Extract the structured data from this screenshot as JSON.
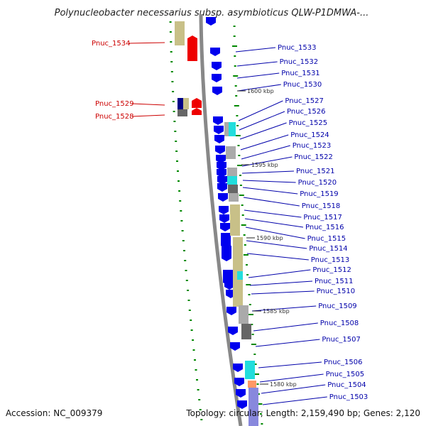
{
  "title": "Polynucleobacter necessarius subsp. asymbioticus QLW-P1DMWA-...",
  "accession": "Accession: NC_009379",
  "topology": "Topology: circular; Length: 2,159,490 bp; Genes: 2,120",
  "colors": {
    "forward_gene": "#0000ee",
    "reverse_gene": "#ee0000",
    "backbone": "#888888",
    "forward_label": "#0000aa",
    "reverse_label": "#cc0000",
    "gc_marker": "#008800",
    "cog_khaki": "#c8c088",
    "cog_cyan": "#22dddd",
    "cog_grey": "#aaaaaa",
    "cog_dark": "#666666"
  },
  "scale_markers": [
    {
      "text": "1600 kbp"
    },
    {
      "text": "1595 kbp"
    },
    {
      "text": "1590 kbp"
    },
    {
      "text": "1585 kbp"
    },
    {
      "text": "1580 kbp"
    }
  ],
  "reverse_genes": [
    {
      "label": "Pnuc_1534"
    },
    {
      "label": "Pnuc_1529"
    },
    {
      "label": "Pnuc_1528"
    }
  ],
  "forward_genes": [
    {
      "label": "Pnuc_1533"
    },
    {
      "label": "Pnuc_1532"
    },
    {
      "label": "Pnuc_1531"
    },
    {
      "label": "Pnuc_1530"
    },
    {
      "label": "Pnuc_1527"
    },
    {
      "label": "Pnuc_1526"
    },
    {
      "label": "Pnuc_1525"
    },
    {
      "label": "Pnuc_1524"
    },
    {
      "label": "Pnuc_1523"
    },
    {
      "label": "Pnuc_1522"
    },
    {
      "label": "Pnuc_1521"
    },
    {
      "label": "Pnuc_1520"
    },
    {
      "label": "Pnuc_1519"
    },
    {
      "label": "Pnuc_1518"
    },
    {
      "label": "Pnuc_1517"
    },
    {
      "label": "Pnuc_1516"
    },
    {
      "label": "Pnuc_1515"
    },
    {
      "label": "Pnuc_1514"
    },
    {
      "label": "Pnuc_1513"
    },
    {
      "label": "Pnuc_1512"
    },
    {
      "label": "Pnuc_1511"
    },
    {
      "label": "Pnuc_1510"
    },
    {
      "label": "Pnuc_1509"
    },
    {
      "label": "Pnuc_1508"
    },
    {
      "label": "Pnuc_1507"
    },
    {
      "label": "Pnuc_1506"
    },
    {
      "label": "Pnuc_1505"
    },
    {
      "label": "Pnuc_1504"
    },
    {
      "label": "Pnuc_1503"
    }
  ]
}
